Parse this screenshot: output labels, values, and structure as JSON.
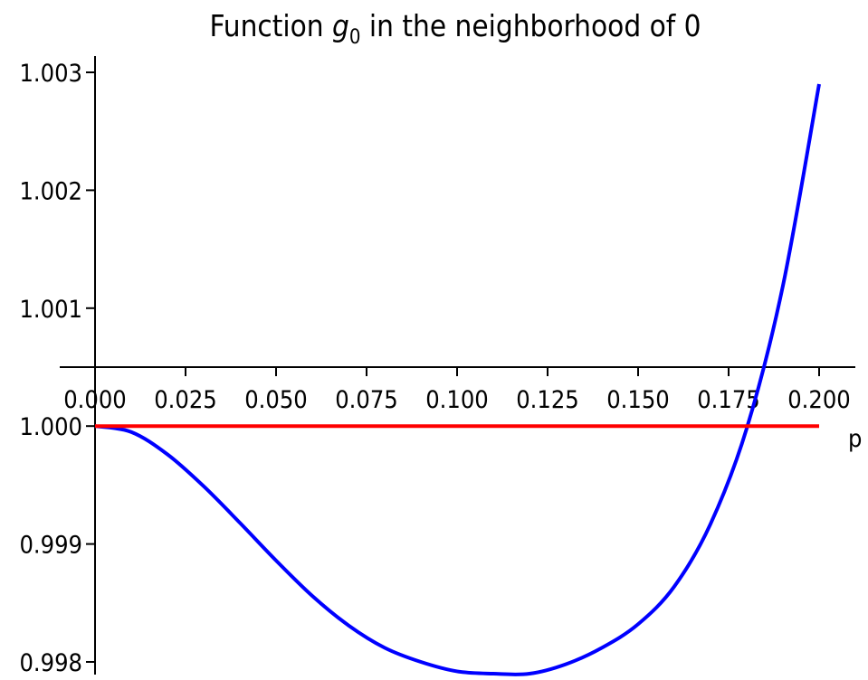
{
  "chart_data": {
    "type": "line",
    "title": {
      "prefix": "Function ",
      "var": "g",
      "sub": "0",
      "suffix": " in the neighborhood of 0"
    },
    "xlabel": "p",
    "ylabel": "",
    "xlim": [
      0.0,
      0.2
    ],
    "ylim": [
      0.998,
      1.003
    ],
    "x_axis_crosses_y_at": 1.0005,
    "x_ticks": [
      0.0,
      0.025,
      0.05,
      0.075,
      0.1,
      0.125,
      0.15,
      0.175,
      0.2
    ],
    "x_tick_labels": [
      "0.000",
      "0.025",
      "0.050",
      "0.075",
      "0.100",
      "0.125",
      "0.150",
      "0.175",
      "0.200"
    ],
    "y_ticks": [
      0.998,
      0.999,
      1.0,
      1.001,
      1.002,
      1.003
    ],
    "y_tick_labels": [
      "0.998",
      "0.999",
      "1.000",
      "1.001",
      "1.002",
      "1.003"
    ],
    "grid": false,
    "series": [
      {
        "color": "#0000ff",
        "x": [
          0.0,
          0.01,
          0.02,
          0.03,
          0.04,
          0.05,
          0.06,
          0.07,
          0.08,
          0.09,
          0.1,
          0.11,
          0.12,
          0.13,
          0.14,
          0.15,
          0.16,
          0.17,
          0.18,
          0.19,
          0.2
        ],
        "y": [
          1.0,
          0.99995,
          0.99976,
          0.99949,
          0.99918,
          0.99886,
          0.99856,
          0.99831,
          0.99812,
          0.998,
          0.99792,
          0.9979,
          0.9979,
          0.99798,
          0.99812,
          0.99832,
          0.99864,
          0.99917,
          0.99998,
          1.00119,
          1.0029
        ]
      },
      {
        "color": "#ff0000",
        "x": [
          0.0,
          0.2
        ],
        "y": [
          1.0,
          1.0
        ]
      }
    ]
  }
}
